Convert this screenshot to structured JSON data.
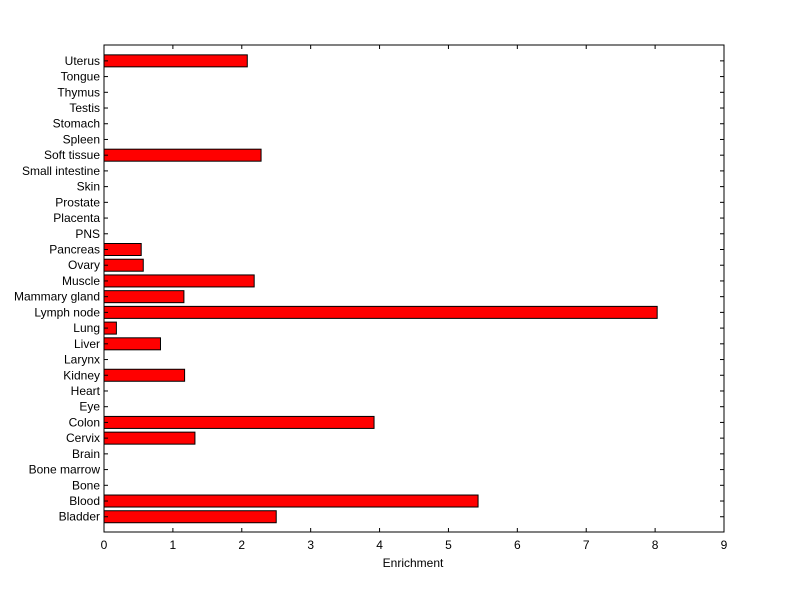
{
  "chart_data": {
    "type": "bar",
    "orientation": "horizontal",
    "title": "",
    "xlabel": "Enrichment",
    "ylabel": "",
    "xlim": [
      0,
      9
    ],
    "xticks": [
      0,
      1,
      2,
      3,
      4,
      5,
      6,
      7,
      8,
      9
    ],
    "grid": false,
    "bar_color": "#ff0000",
    "categories": [
      "Bladder",
      "Blood",
      "Bone",
      "Bone marrow",
      "Brain",
      "Cervix",
      "Colon",
      "Eye",
      "Heart",
      "Kidney",
      "Larynx",
      "Liver",
      "Lung",
      "Lymph node",
      "Mammary gland",
      "Muscle",
      "Ovary",
      "Pancreas",
      "PNS",
      "Placenta",
      "Prostate",
      "Skin",
      "Small intestine",
      "Soft tissue",
      "Spleen",
      "Stomach",
      "Testis",
      "Thymus",
      "Tongue",
      "Uterus"
    ],
    "values": [
      2.5,
      5.43,
      0,
      0,
      0,
      1.32,
      3.92,
      0,
      0,
      1.17,
      0,
      0.82,
      0.18,
      8.03,
      1.16,
      2.18,
      0.57,
      0.54,
      0,
      0,
      0,
      0,
      0,
      2.28,
      0,
      0,
      0,
      0,
      0,
      2.08
    ]
  }
}
